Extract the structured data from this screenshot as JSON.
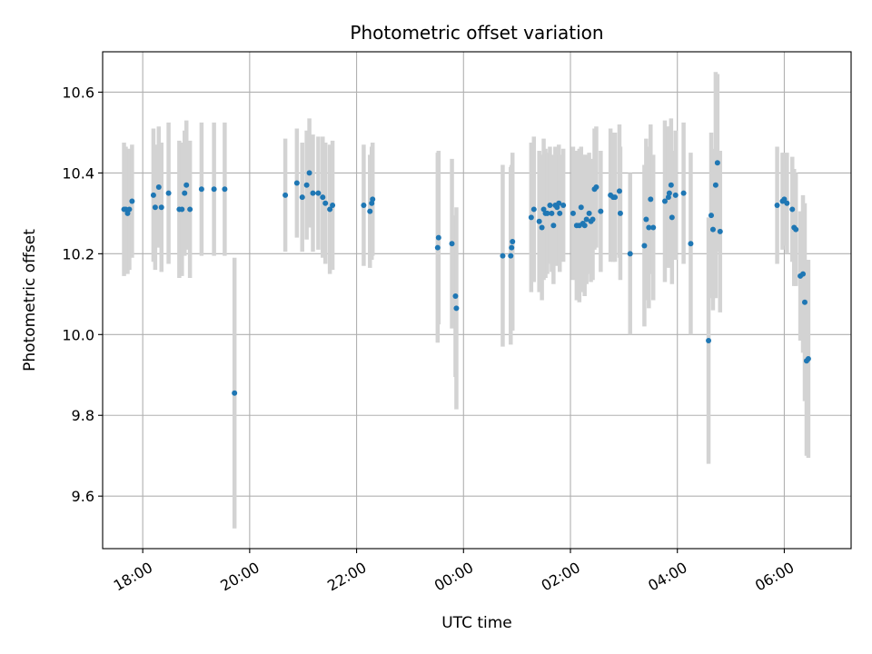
{
  "chart_data": {
    "type": "scatter",
    "title": "Photometric offset variation",
    "xlabel": "UTC time",
    "ylabel": "Photometric offset",
    "grid": true,
    "legend": "none",
    "xlim": [
      "17:15",
      "31:15"
    ],
    "ylim": [
      9.47,
      10.7
    ],
    "x_ticks": [
      "18:00",
      "20:00",
      "22:00",
      "00:00",
      "02:00",
      "04:00",
      "06:00"
    ],
    "x_tick_hours": [
      18,
      20,
      22,
      24,
      26,
      28,
      30
    ],
    "y_ticks": [
      9.6,
      9.8,
      10.0,
      10.2,
      10.4,
      10.6
    ],
    "y_tick_labels": [
      "9.6",
      "9.8",
      "10.0",
      "10.2",
      "10.4",
      "10.6"
    ],
    "colors": {
      "point": "#1f77b4",
      "errorbar": "#d3d3d3"
    },
    "series": [
      {
        "x": [
          "17:39",
          "17:41",
          "17:43",
          "17:45",
          "17:48",
          "18:12",
          "18:14",
          "18:18",
          "18:21",
          "18:29",
          "18:41",
          "18:44",
          "18:47",
          "18:49",
          "18:53",
          "19:06",
          "19:20",
          "19:32",
          "19:43",
          "20:40",
          "20:53",
          "20:59",
          "21:04",
          "21:07",
          "21:11",
          "21:17",
          "21:22",
          "21:25",
          "21:30",
          "21:33",
          "22:08",
          "22:15",
          "22:17",
          "22:18",
          "23:31",
          "23:32",
          "23:47",
          "23:51",
          "23:52",
          "00:44",
          "00:53",
          "00:54",
          "00:55",
          "01:16",
          "01:19",
          "01:25",
          "01:28",
          "01:30",
          "01:32",
          "01:34",
          "01:37",
          "01:39",
          "01:41",
          "01:43",
          "01:45",
          "01:47",
          "01:48",
          "01:52",
          "02:03",
          "02:07",
          "02:10",
          "02:12",
          "02:14",
          "02:16",
          "02:18",
          "02:21",
          "02:23",
          "02:25",
          "02:27",
          "02:29",
          "02:34",
          "02:45",
          "02:48",
          "02:50",
          "02:55",
          "02:56",
          "03:07",
          "03:23",
          "03:25",
          "03:28",
          "03:30",
          "03:33",
          "03:46",
          "03:50",
          "03:51",
          "03:53",
          "03:54",
          "03:58",
          "04:07",
          "04:15",
          "04:35",
          "04:38",
          "04:40",
          "04:43",
          "04:45",
          "04:48",
          "05:52",
          "05:58",
          "06:00",
          "06:03",
          "06:09",
          "06:11",
          "06:13",
          "06:18",
          "06:21",
          "06:23",
          "06:25",
          "06:27"
        ],
        "y": [
          10.31,
          10.31,
          10.3,
          10.31,
          10.33,
          10.345,
          10.315,
          10.365,
          10.315,
          10.35,
          10.31,
          10.31,
          10.35,
          10.37,
          10.31,
          10.36,
          10.36,
          10.36,
          9.855,
          10.345,
          10.375,
          10.34,
          10.37,
          10.4,
          10.35,
          10.35,
          10.34,
          10.325,
          10.31,
          10.32,
          10.32,
          10.305,
          10.325,
          10.335,
          10.215,
          10.24,
          10.225,
          10.095,
          10.065,
          10.195,
          10.195,
          10.215,
          10.23,
          10.29,
          10.31,
          10.28,
          10.265,
          10.31,
          10.3,
          10.3,
          10.32,
          10.3,
          10.27,
          10.32,
          10.315,
          10.325,
          10.3,
          10.32,
          10.3,
          10.27,
          10.27,
          10.315,
          10.275,
          10.27,
          10.285,
          10.3,
          10.28,
          10.285,
          10.36,
          10.365,
          10.305,
          10.345,
          10.34,
          10.34,
          10.355,
          10.3,
          10.2,
          10.22,
          10.285,
          10.265,
          10.335,
          10.265,
          10.33,
          10.34,
          10.35,
          10.37,
          10.29,
          10.345,
          10.35,
          10.225,
          9.985,
          10.295,
          10.26,
          10.37,
          10.425,
          10.255,
          10.32,
          10.33,
          10.335,
          10.325,
          10.31,
          10.265,
          10.26,
          10.145,
          10.15,
          10.08,
          9.935,
          9.94
        ],
        "err": [
          0.165,
          0.155,
          0.15,
          0.15,
          0.14,
          0.165,
          0.155,
          0.15,
          0.16,
          0.175,
          0.17,
          0.165,
          0.155,
          0.16,
          0.17,
          0.165,
          0.165,
          0.165,
          0.335,
          0.14,
          0.135,
          0.135,
          0.135,
          0.135,
          0.145,
          0.14,
          0.15,
          0.15,
          0.16,
          0.16,
          0.15,
          0.14,
          0.14,
          0.14,
          0.235,
          0.215,
          0.21,
          0.2,
          0.25,
          0.225,
          0.22,
          0.205,
          0.22,
          0.185,
          0.18,
          0.175,
          0.18,
          0.175,
          0.16,
          0.15,
          0.145,
          0.145,
          0.145,
          0.145,
          0.145,
          0.145,
          0.145,
          0.14,
          0.165,
          0.185,
          0.19,
          0.15,
          0.17,
          0.175,
          0.16,
          0.15,
          0.15,
          0.15,
          0.15,
          0.15,
          0.15,
          0.165,
          0.16,
          0.16,
          0.165,
          0.165,
          0.2,
          0.2,
          0.2,
          0.2,
          0.185,
          0.18,
          0.2,
          0.175,
          0.165,
          0.165,
          0.165,
          0.16,
          0.175,
          0.225,
          0.305,
          0.205,
          0.2,
          0.28,
          0.22,
          0.2,
          0.145,
          0.12,
          0.115,
          0.125,
          0.13,
          0.145,
          0.14,
          0.16,
          0.195,
          0.245,
          0.235,
          0.245
        ]
      }
    ]
  }
}
